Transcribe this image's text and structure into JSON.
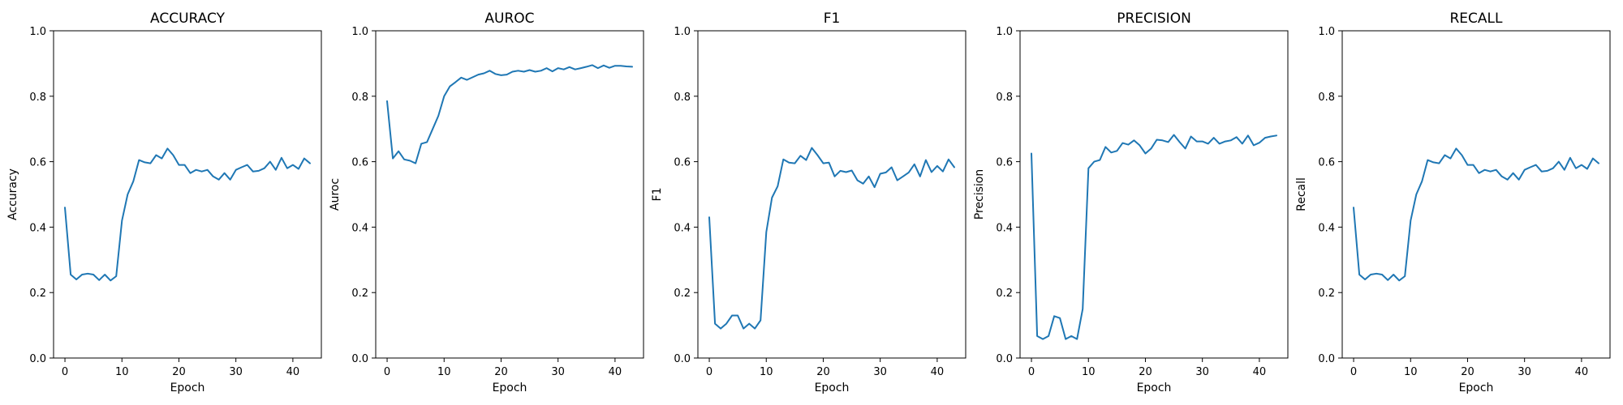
{
  "chart_data": [
    {
      "type": "line",
      "title": "ACCURACY",
      "xlabel": "Epoch",
      "ylabel": "Accuracy",
      "xlim": [
        -2,
        45
      ],
      "ylim": [
        0,
        1
      ],
      "xticks": [
        0,
        10,
        20,
        30,
        40
      ],
      "yticks": [
        0.0,
        0.2,
        0.4,
        0.6,
        0.8,
        1.0
      ],
      "grid": false,
      "color": "#1f77b4",
      "x": [
        0,
        1,
        2,
        3,
        4,
        5,
        6,
        7,
        8,
        9,
        10,
        11,
        12,
        13,
        14,
        15,
        16,
        17,
        18,
        19,
        20,
        21,
        22,
        23,
        24,
        25,
        26,
        27,
        28,
        29,
        30,
        31,
        32,
        33,
        34,
        35,
        36,
        37,
        38,
        39,
        40,
        41,
        42,
        43
      ],
      "y": [
        0.46,
        0.255,
        0.24,
        0.255,
        0.258,
        0.255,
        0.238,
        0.255,
        0.237,
        0.25,
        0.42,
        0.5,
        0.54,
        0.605,
        0.598,
        0.595,
        0.62,
        0.61,
        0.64,
        0.62,
        0.59,
        0.59,
        0.565,
        0.575,
        0.57,
        0.575,
        0.555,
        0.545,
        0.565,
        0.545,
        0.575,
        0.583,
        0.59,
        0.57,
        0.572,
        0.58,
        0.6,
        0.575,
        0.612,
        0.58,
        0.59,
        0.578,
        0.61,
        0.595
      ]
    },
    {
      "type": "line",
      "title": "AUROC",
      "xlabel": "Epoch",
      "ylabel": "Auroc",
      "xlim": [
        -2,
        45
      ],
      "ylim": [
        0,
        1
      ],
      "xticks": [
        0,
        10,
        20,
        30,
        40
      ],
      "yticks": [
        0.0,
        0.2,
        0.4,
        0.6,
        0.8,
        1.0
      ],
      "grid": false,
      "color": "#1f77b4",
      "x": [
        0,
        1,
        2,
        3,
        4,
        5,
        6,
        7,
        8,
        9,
        10,
        11,
        12,
        13,
        14,
        15,
        16,
        17,
        18,
        19,
        20,
        21,
        22,
        23,
        24,
        25,
        26,
        27,
        28,
        29,
        30,
        31,
        32,
        33,
        34,
        35,
        36,
        37,
        38,
        39,
        40,
        41,
        42,
        43
      ],
      "y": [
        0.785,
        0.61,
        0.632,
        0.607,
        0.603,
        0.595,
        0.655,
        0.66,
        0.7,
        0.74,
        0.8,
        0.83,
        0.843,
        0.857,
        0.85,
        0.858,
        0.866,
        0.87,
        0.878,
        0.868,
        0.864,
        0.866,
        0.875,
        0.878,
        0.875,
        0.88,
        0.875,
        0.878,
        0.886,
        0.876,
        0.886,
        0.882,
        0.889,
        0.882,
        0.886,
        0.89,
        0.895,
        0.886,
        0.894,
        0.887,
        0.893,
        0.893,
        0.891,
        0.89
      ]
    },
    {
      "type": "line",
      "title": "F1",
      "xlabel": "Epoch",
      "ylabel": "F1",
      "xlim": [
        -2,
        45
      ],
      "ylim": [
        0,
        1
      ],
      "xticks": [
        0,
        10,
        20,
        30,
        40
      ],
      "yticks": [
        0.0,
        0.2,
        0.4,
        0.6,
        0.8,
        1.0
      ],
      "grid": false,
      "color": "#1f77b4",
      "x": [
        0,
        1,
        2,
        3,
        4,
        5,
        6,
        7,
        8,
        9,
        10,
        11,
        12,
        13,
        14,
        15,
        16,
        17,
        18,
        19,
        20,
        21,
        22,
        23,
        24,
        25,
        26,
        27,
        28,
        29,
        30,
        31,
        32,
        33,
        34,
        35,
        36,
        37,
        38,
        39,
        40,
        41,
        42,
        43
      ],
      "y": [
        0.43,
        0.105,
        0.09,
        0.105,
        0.13,
        0.13,
        0.09,
        0.105,
        0.09,
        0.115,
        0.385,
        0.49,
        0.525,
        0.607,
        0.597,
        0.595,
        0.618,
        0.605,
        0.642,
        0.62,
        0.595,
        0.597,
        0.555,
        0.572,
        0.568,
        0.573,
        0.543,
        0.533,
        0.555,
        0.522,
        0.563,
        0.567,
        0.583,
        0.543,
        0.555,
        0.567,
        0.592,
        0.555,
        0.605,
        0.568,
        0.587,
        0.57,
        0.607,
        0.583
      ]
    },
    {
      "type": "line",
      "title": "PRECISION",
      "xlabel": "Epoch",
      "ylabel": "Precision",
      "xlim": [
        -2,
        45
      ],
      "ylim": [
        0,
        1
      ],
      "xticks": [
        0,
        10,
        20,
        30,
        40
      ],
      "yticks": [
        0.0,
        0.2,
        0.4,
        0.6,
        0.8,
        1.0
      ],
      "grid": false,
      "color": "#1f77b4",
      "x": [
        0,
        1,
        2,
        3,
        4,
        5,
        6,
        7,
        8,
        9,
        10,
        11,
        12,
        13,
        14,
        15,
        16,
        17,
        18,
        19,
        20,
        21,
        22,
        23,
        24,
        25,
        26,
        27,
        28,
        29,
        30,
        31,
        32,
        33,
        34,
        35,
        36,
        37,
        38,
        39,
        40,
        41,
        42,
        43
      ],
      "y": [
        0.625,
        0.067,
        0.058,
        0.067,
        0.128,
        0.122,
        0.058,
        0.067,
        0.058,
        0.15,
        0.58,
        0.6,
        0.605,
        0.645,
        0.628,
        0.633,
        0.657,
        0.652,
        0.665,
        0.65,
        0.625,
        0.64,
        0.667,
        0.665,
        0.66,
        0.682,
        0.66,
        0.64,
        0.677,
        0.662,
        0.662,
        0.655,
        0.673,
        0.655,
        0.662,
        0.665,
        0.675,
        0.655,
        0.68,
        0.65,
        0.658,
        0.673,
        0.677,
        0.68
      ]
    },
    {
      "type": "line",
      "title": "RECALL",
      "xlabel": "Epoch",
      "ylabel": "Recall",
      "xlim": [
        -2,
        45
      ],
      "ylim": [
        0,
        1
      ],
      "xticks": [
        0,
        10,
        20,
        30,
        40
      ],
      "yticks": [
        0.0,
        0.2,
        0.4,
        0.6,
        0.8,
        1.0
      ],
      "grid": false,
      "color": "#1f77b4",
      "x": [
        0,
        1,
        2,
        3,
        4,
        5,
        6,
        7,
        8,
        9,
        10,
        11,
        12,
        13,
        14,
        15,
        16,
        17,
        18,
        19,
        20,
        21,
        22,
        23,
        24,
        25,
        26,
        27,
        28,
        29,
        30,
        31,
        32,
        33,
        34,
        35,
        36,
        37,
        38,
        39,
        40,
        41,
        42,
        43
      ],
      "y": [
        0.46,
        0.255,
        0.24,
        0.255,
        0.258,
        0.255,
        0.238,
        0.255,
        0.237,
        0.25,
        0.42,
        0.5,
        0.54,
        0.605,
        0.598,
        0.595,
        0.62,
        0.61,
        0.64,
        0.62,
        0.59,
        0.59,
        0.565,
        0.575,
        0.57,
        0.575,
        0.555,
        0.545,
        0.565,
        0.545,
        0.575,
        0.583,
        0.59,
        0.57,
        0.572,
        0.58,
        0.6,
        0.575,
        0.612,
        0.58,
        0.59,
        0.578,
        0.61,
        0.595
      ]
    }
  ]
}
